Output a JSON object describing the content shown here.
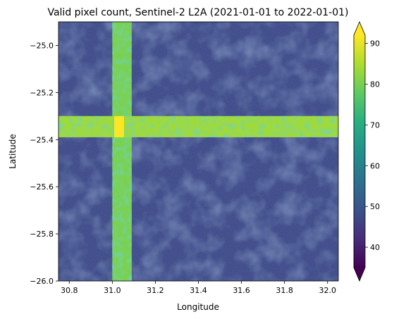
{
  "chart_data": {
    "type": "heatmap",
    "title": "Valid pixel count, Sentinel-2 L2A (2021-01-01 to 2022-01-01)",
    "xlabel": "Longitude",
    "ylabel": "Latitude",
    "xlim": [
      30.75,
      32.05
    ],
    "ylim": [
      -26.0,
      -24.9
    ],
    "xticks": [
      30.8,
      31.0,
      31.2,
      31.4,
      31.6,
      31.8,
      32.0
    ],
    "xtick_labels": [
      "30.8",
      "31.0",
      "31.2",
      "31.4",
      "31.6",
      "31.8",
      "32.0"
    ],
    "yticks": [
      -25.0,
      -25.2,
      -25.4,
      -25.6,
      -25.8,
      -26.0
    ],
    "ytick_labels": [
      "−25.0",
      "−25.2",
      "−25.4",
      "−25.6",
      "−25.8",
      "−26.0"
    ],
    "colormap": "viridis",
    "colorbar": {
      "range": [
        35,
        92
      ],
      "ticks": [
        40,
        50,
        60,
        70,
        80,
        90
      ],
      "tick_labels": [
        "40",
        "50",
        "60",
        "70",
        "80",
        "90"
      ],
      "extend": "both"
    },
    "background_value": 42,
    "vertical_band": {
      "lon_range": [
        31.0,
        31.09
      ],
      "value": 80
    },
    "horizontal_band": {
      "lat_range": [
        -25.39,
        -25.3
      ],
      "value": 82
    },
    "overlap_value": 90,
    "grid": false
  }
}
